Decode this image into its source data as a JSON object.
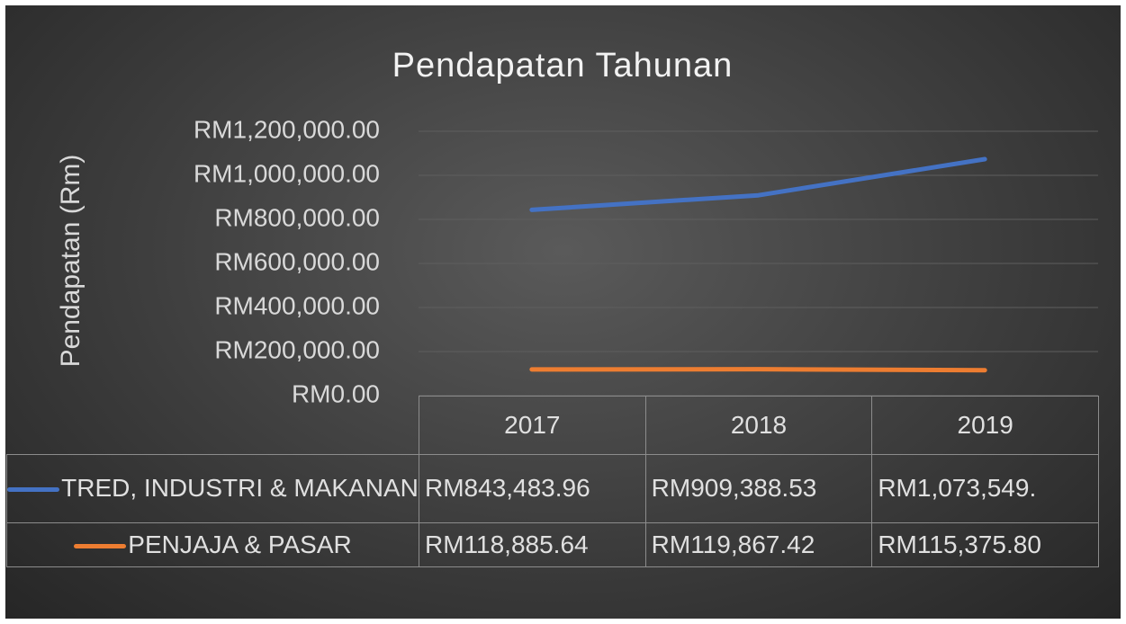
{
  "chart_data": {
    "type": "line",
    "title": "Pendapatan Tahunan",
    "y_label": "Pendapatan (Rm)",
    "categories": [
      "2017",
      "2018",
      "2019"
    ],
    "series": [
      {
        "name": "TRED, INDUSTRI & MAKANAN",
        "color": "#4472c4",
        "values": [
          843483.96,
          909388.53,
          1073549
        ],
        "value_labels": [
          "RM843,483.96",
          "RM909,388.53",
          "RM1,073,549."
        ]
      },
      {
        "name": "PENJAJA & PASAR",
        "color": "#ed7d31",
        "values": [
          118885.64,
          119867.42,
          115375.8
        ],
        "value_labels": [
          "RM118,885.64",
          "RM119,867.42",
          "RM115,375.80"
        ]
      }
    ],
    "ylim": [
      0,
      1200000
    ],
    "yticks": [
      {
        "value": 0,
        "label": "RM0.00"
      },
      {
        "value": 200000,
        "label": "RM200,000.00"
      },
      {
        "value": 400000,
        "label": "RM400,000.00"
      },
      {
        "value": 600000,
        "label": "RM600,000.00"
      },
      {
        "value": 800000,
        "label": "RM800,000.00"
      },
      {
        "value": 1000000,
        "label": "RM1,000,000.00"
      },
      {
        "value": 1200000,
        "label": "RM1,200,000.00"
      }
    ],
    "grid": true,
    "data_table": true
  }
}
